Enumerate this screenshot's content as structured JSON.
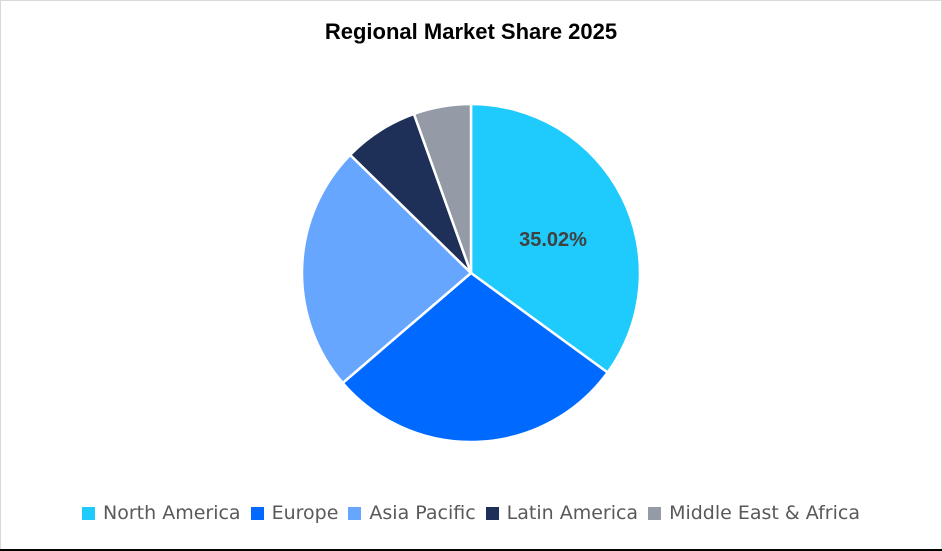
{
  "chart_data": {
    "type": "pie",
    "title": "Regional Market Share 2025",
    "categories": [
      "North America",
      "Europe",
      "Asia Pacific",
      "Latin America",
      "Middle East & Africa"
    ],
    "values": [
      35.02,
      28.7,
      23.6,
      7.2,
      5.48
    ],
    "colors": [
      "#1ecbfc",
      "#0069ff",
      "#66a6ff",
      "#1e3057",
      "#949aa6"
    ],
    "data_labels": [
      {
        "category": "North America",
        "text": "35.02%"
      }
    ],
    "legend_position": "bottom"
  },
  "title": "Regional Market Share 2025",
  "legend": [
    {
      "label": "North America",
      "color": "#1ecbfc"
    },
    {
      "label": "Europe",
      "color": "#0069ff"
    },
    {
      "label": "Asia Pacific",
      "color": "#66a6ff"
    },
    {
      "label": "Latin America",
      "color": "#1e3057"
    },
    {
      "label": "Middle East & Africa",
      "color": "#949aa6"
    }
  ],
  "label_na": "35.02%"
}
